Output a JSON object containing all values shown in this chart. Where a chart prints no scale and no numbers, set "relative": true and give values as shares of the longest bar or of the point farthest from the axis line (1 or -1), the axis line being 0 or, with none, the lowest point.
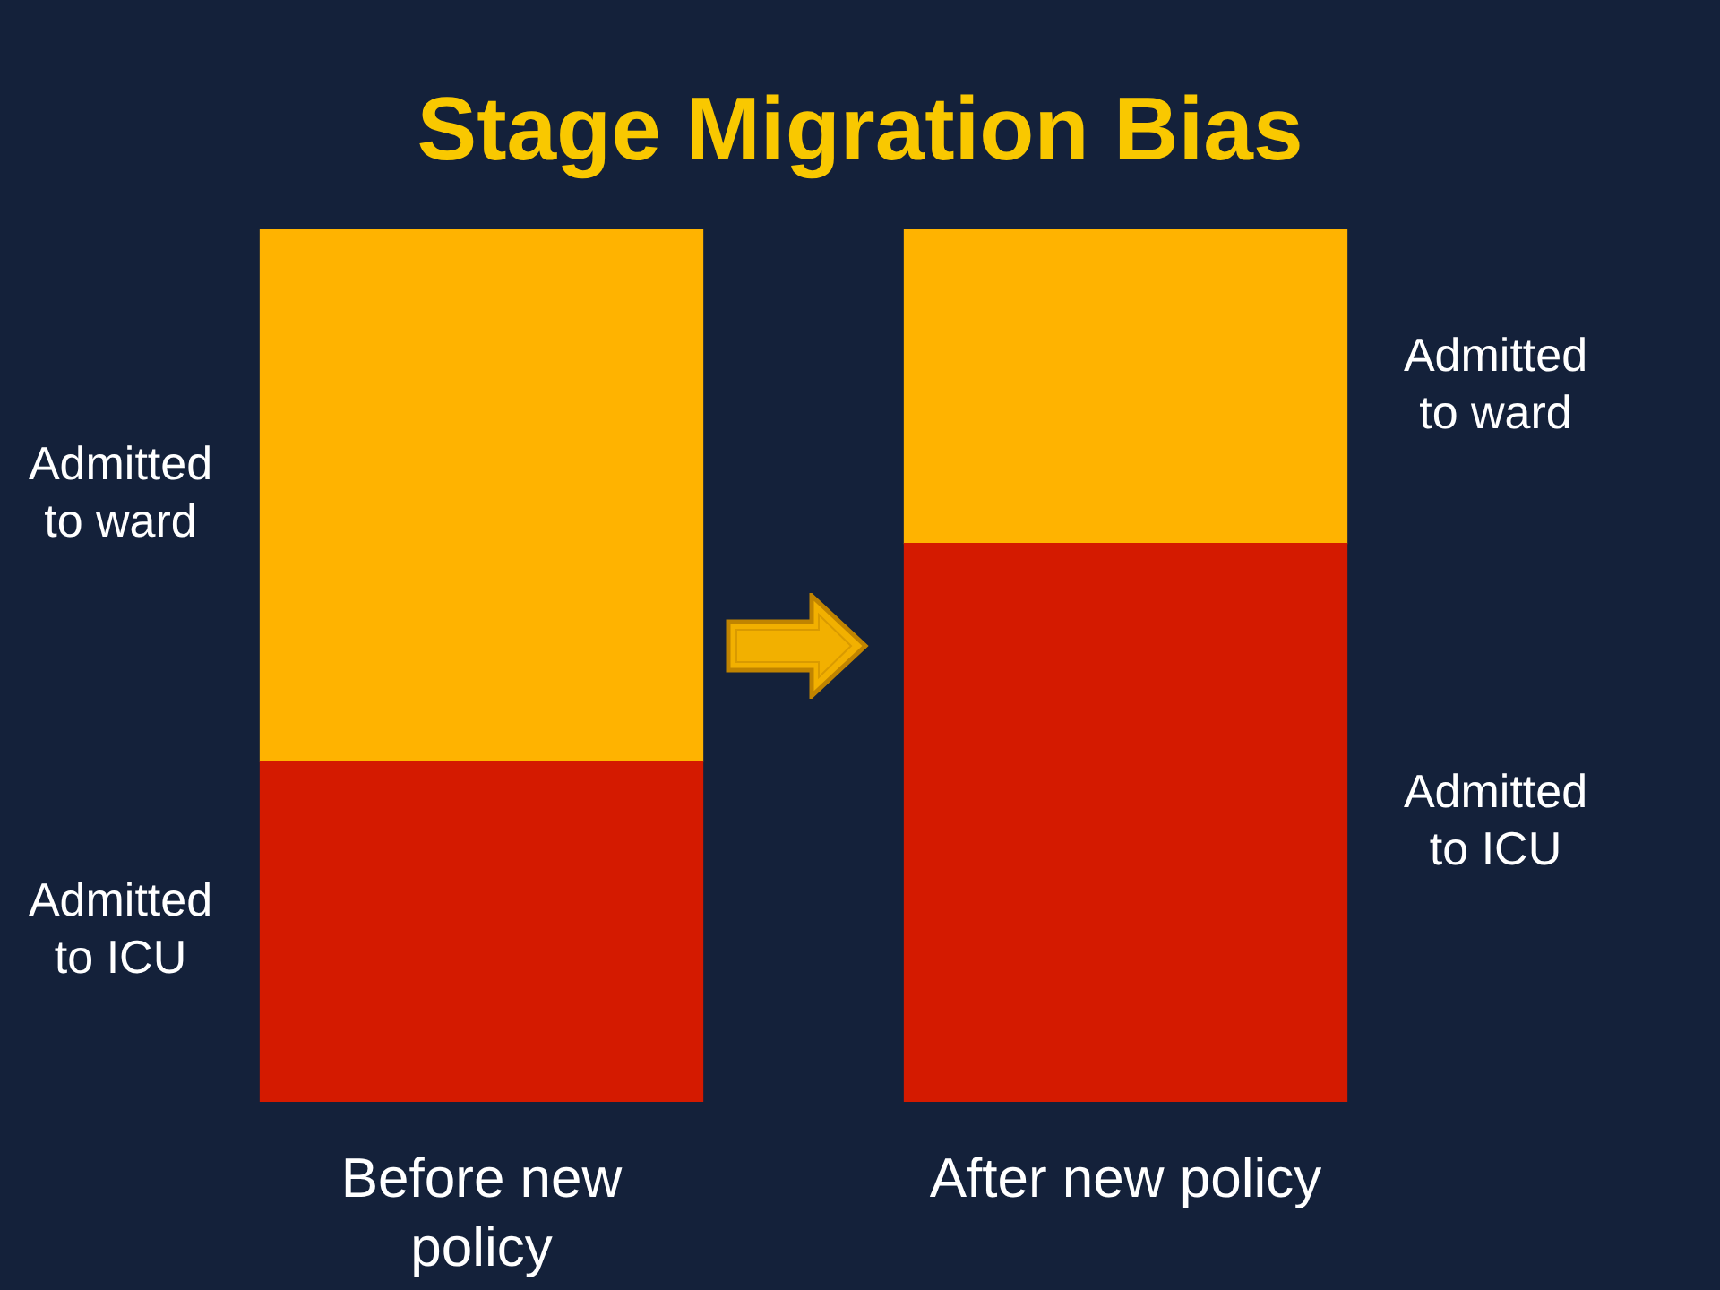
{
  "chart_data": {
    "type": "bar",
    "title": "Stage Migration Bias",
    "categories": [
      "Before new policy",
      "After new policy"
    ],
    "stacked": true,
    "relative": true,
    "series": [
      {
        "name": "Admitted to ICU",
        "color": "#d41a00",
        "values": [
          0.39,
          0.64
        ]
      },
      {
        "name": "Admitted to ward",
        "color": "#ffb300",
        "values": [
          0.61,
          0.36
        ]
      }
    ]
  }
}
